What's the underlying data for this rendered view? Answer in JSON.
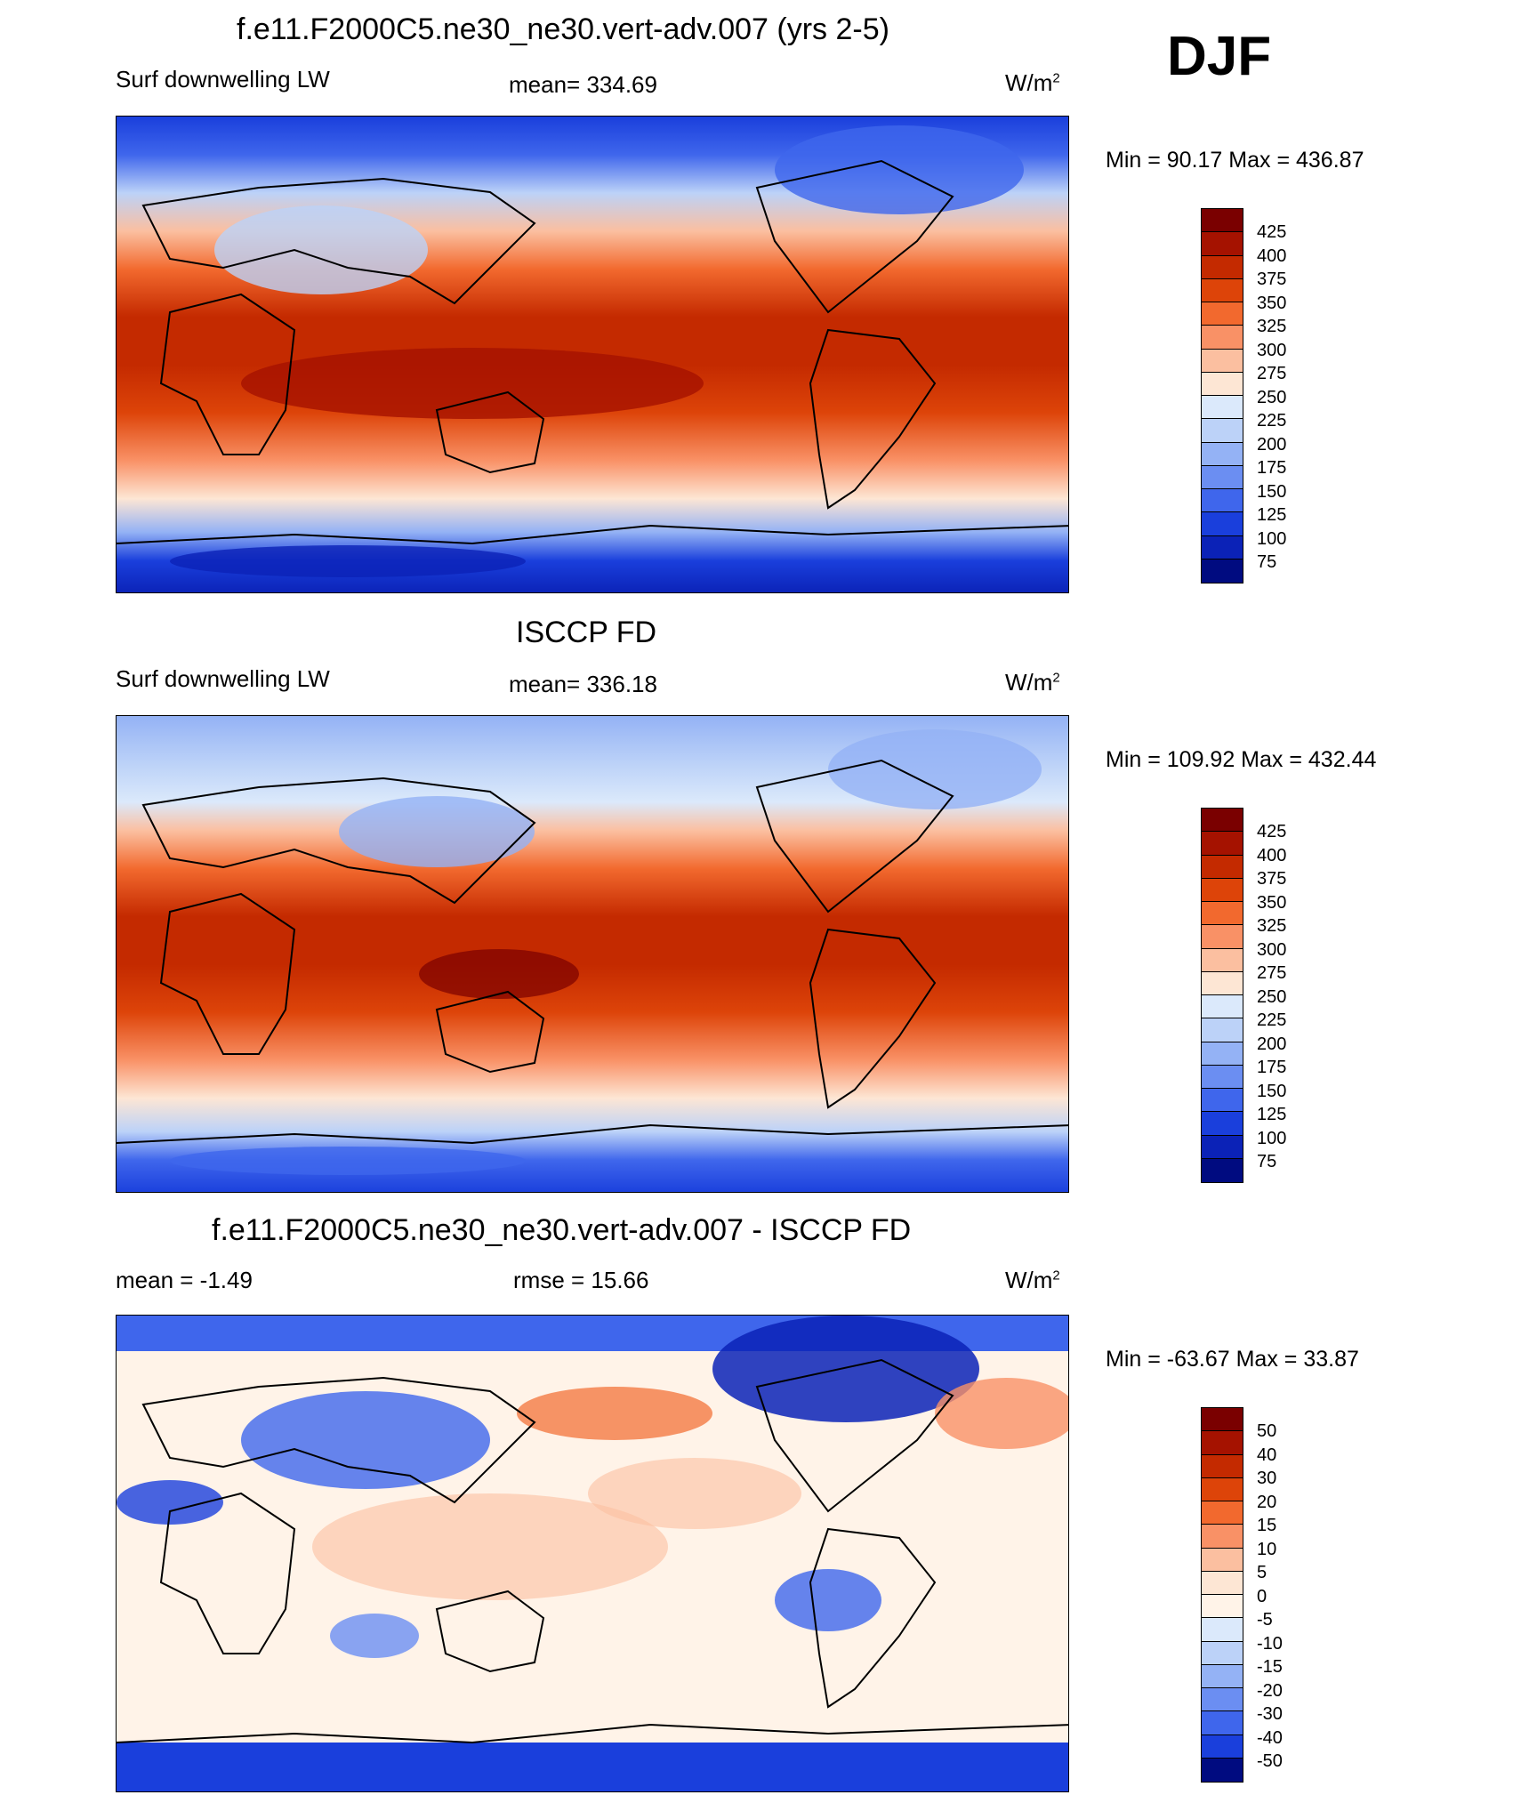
{
  "header": {
    "season": "DJF"
  },
  "units_label": "W/m",
  "units_sup": "2",
  "panels": [
    {
      "title": "f.e11.F2000C5.ne30_ne30.vert-adv.007 (yrs 2-5)",
      "left_label": "Surf downwelling LW",
      "center_label": "mean= 334.69",
      "minmax": "Min =  90.17 Max = 436.87",
      "colorbar_levels": [
        "425",
        "400",
        "375",
        "350",
        "325",
        "300",
        "275",
        "250",
        "225",
        "200",
        "175",
        "150",
        "125",
        "100",
        "75"
      ]
    },
    {
      "title": "ISCCP FD",
      "left_label": "Surf downwelling LW",
      "center_label": "mean= 336.18",
      "minmax": "Min = 109.92 Max = 432.44",
      "colorbar_levels": [
        "425",
        "400",
        "375",
        "350",
        "325",
        "300",
        "275",
        "250",
        "225",
        "200",
        "175",
        "150",
        "125",
        "100",
        "75"
      ]
    },
    {
      "title": "f.e11.F2000C5.ne30_ne30.vert-adv.007 - ISCCP FD",
      "left_label": "mean =  -1.49",
      "center_label": "rmse =  15.66",
      "minmax": "Min = -63.67 Max =  33.87",
      "colorbar_levels": [
        "50",
        "40",
        "30",
        "20",
        "15",
        "10",
        "5",
        "0",
        "-5",
        "-10",
        "-15",
        "-20",
        "-30",
        "-40",
        "-50"
      ]
    }
  ],
  "colors": {
    "field_scale": [
      "#7a0000",
      "#a51200",
      "#c42a00",
      "#dd4409",
      "#f2692e",
      "#f99166",
      "#fbbfa0",
      "#fde6d4",
      "#dbe9fb",
      "#bcd2f8",
      "#94b2f5",
      "#6b8ef2",
      "#3f66ec",
      "#1a3fdc",
      "#0b22b7",
      "#000b80"
    ],
    "diff_scale": [
      "#7a0000",
      "#a51200",
      "#c42a00",
      "#dd4409",
      "#f2692e",
      "#f99166",
      "#fbbfa0",
      "#fde6d4",
      "#fff3e8",
      "#dbe9fb",
      "#bcd2f8",
      "#94b2f5",
      "#6b8ef2",
      "#3f66ec",
      "#1a3fdc",
      "#000b80"
    ]
  }
}
